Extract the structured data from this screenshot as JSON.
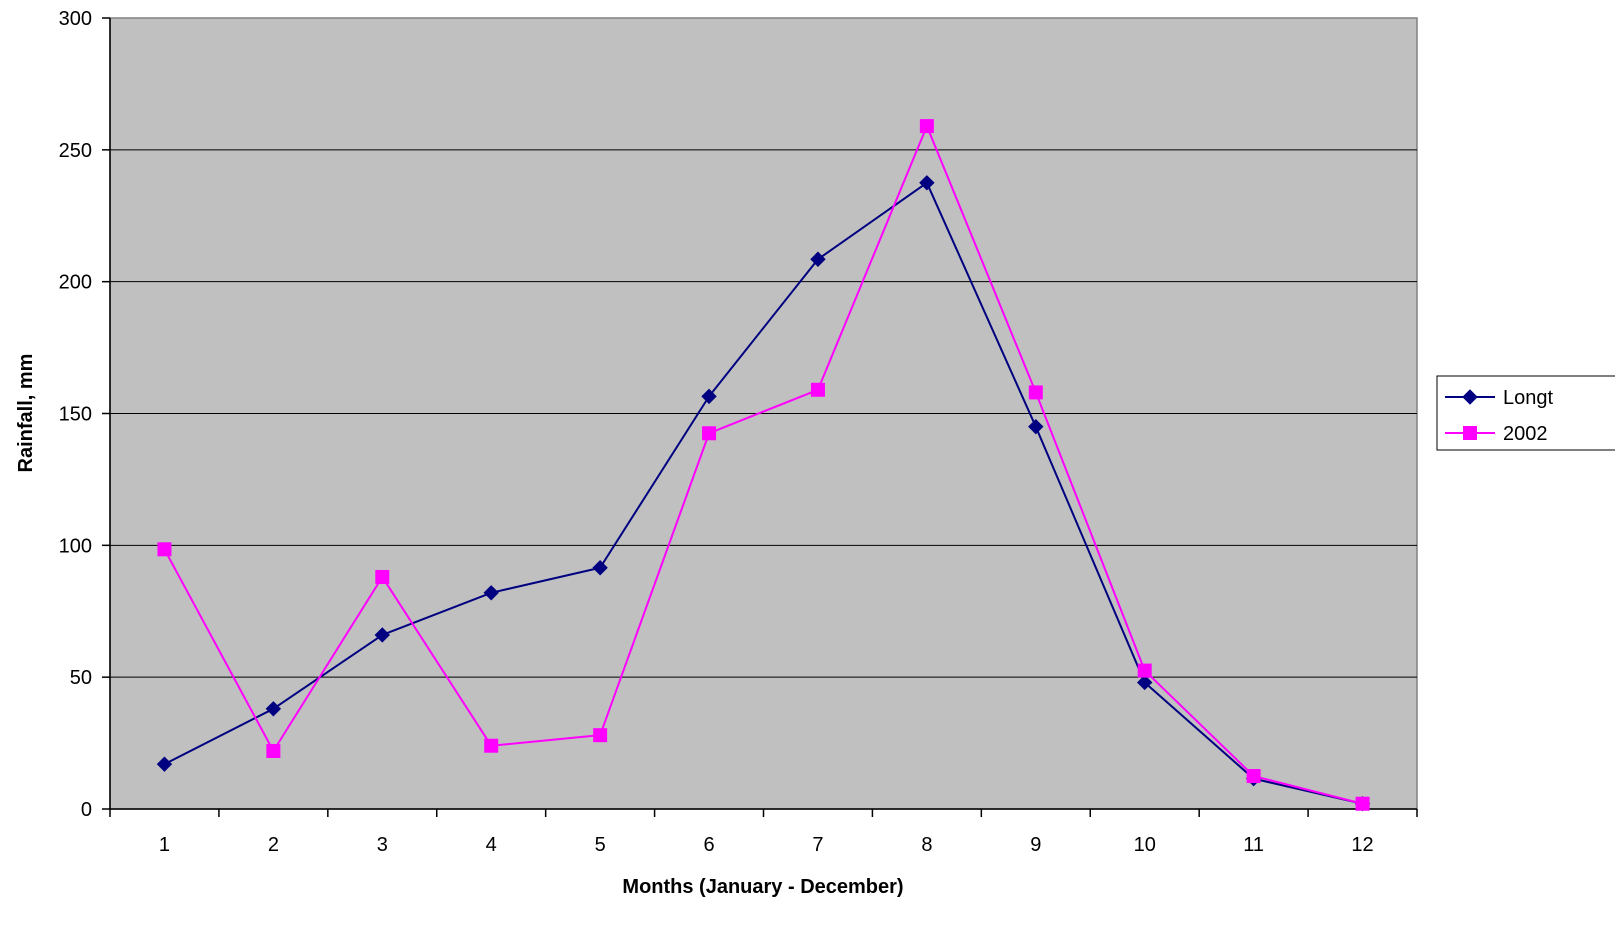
{
  "chart_data": {
    "type": "line",
    "title": "",
    "xlabel": "Months (January - December)",
    "ylabel": "Rainfall, mm",
    "categories": [
      "1",
      "2",
      "3",
      "4",
      "5",
      "6",
      "7",
      "8",
      "9",
      "10",
      "11",
      "12"
    ],
    "ylim": [
      0,
      300
    ],
    "yticks": [
      "0",
      "50",
      "100",
      "150",
      "200",
      "250",
      "300"
    ],
    "grid": true,
    "legend_position": "right",
    "plot_background": "#C0C0C0",
    "series": [
      {
        "name": "Longt",
        "color": "#000080",
        "marker": "diamond",
        "values": [
          17,
          38,
          66,
          82,
          91.5,
          156.5,
          208.5,
          237.5,
          145,
          48,
          11.5,
          2
        ]
      },
      {
        "name": "2002",
        "color": "#FF00FF",
        "marker": "square",
        "values": [
          98.5,
          22,
          88,
          24,
          28,
          142.5,
          159,
          259,
          158,
          52.5,
          12.5,
          2
        ]
      }
    ]
  }
}
